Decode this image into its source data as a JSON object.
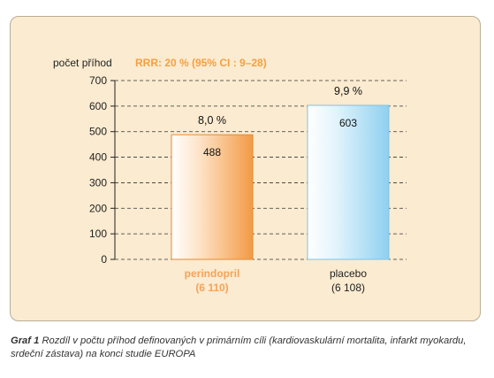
{
  "chart_data": {
    "type": "bar",
    "ylabel": "počet příhod",
    "annotation": "RRR: 20 % (95% CI : 9–28)",
    "ylim": [
      0,
      700
    ],
    "yticks": [
      0,
      100,
      200,
      300,
      400,
      500,
      600,
      700
    ],
    "grid": true,
    "categories": [
      {
        "line1": "perindopril",
        "line2": "(6 110)"
      },
      {
        "line1": "placebo",
        "line2": "(6 108)"
      }
    ],
    "values": [
      488,
      603
    ],
    "value_labels": [
      "488",
      "603"
    ],
    "percent_labels": [
      "8,0 %",
      "9,9 %"
    ],
    "colors": {
      "perindopril": "#f4a35a",
      "placebo": "#9fd6f2",
      "annotation": "#f4a040",
      "panel": "#fbebd0"
    }
  },
  "caption": {
    "lead": "Graf 1",
    "text": "Rozdíl v počtu příhod definovaných v primárním cíli (kardiovaskulární mortalita, infarkt myokardu, srdeční zástava) na konci studie EUROPA"
  }
}
